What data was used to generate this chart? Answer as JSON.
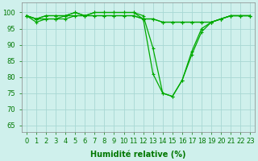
{
  "xlabel": "Humidité relative (%)",
  "ylabel_ticks": [
    65,
    70,
    75,
    80,
    85,
    90,
    95,
    100
  ],
  "xlim": [
    -0.5,
    23.5
  ],
  "ylim": [
    63,
    103
  ],
  "background_color": "#cff0ec",
  "grid_color": "#a8d8d4",
  "line_color": "#00aa00",
  "marker": "+",
  "markersize": 3,
  "linewidth": 0.9,
  "series": [
    [
      99,
      98,
      99,
      99,
      99,
      100,
      99,
      100,
      100,
      100,
      100,
      100,
      99,
      89,
      75,
      74,
      79,
      87,
      94,
      97,
      98,
      99,
      99,
      99
    ],
    [
      99,
      97,
      98,
      98,
      99,
      99,
      99,
      99,
      99,
      99,
      99,
      99,
      98,
      81,
      75,
      74,
      79,
      88,
      95,
      97,
      98,
      99,
      99,
      99
    ],
    [
      99,
      98,
      98,
      98,
      98,
      99,
      99,
      99,
      99,
      99,
      99,
      99,
      98,
      98,
      97,
      97,
      97,
      97,
      97,
      97,
      98,
      99,
      99,
      99
    ],
    [
      99,
      98,
      99,
      99,
      99,
      100,
      99,
      100,
      100,
      100,
      100,
      100,
      98,
      98,
      97,
      97,
      97,
      97,
      97,
      97,
      98,
      99,
      99,
      99
    ]
  ],
  "xtick_labels": [
    "0",
    "1",
    "2",
    "3",
    "4",
    "5",
    "6",
    "7",
    "8",
    "9",
    "10",
    "11",
    "12",
    "13",
    "14",
    "15",
    "16",
    "17",
    "18",
    "19",
    "20",
    "21",
    "22",
    "23"
  ],
  "xlabel_fontsize": 7,
  "xlabel_color": "#007700",
  "tick_fontsize": 6,
  "tick_color": "#007700"
}
